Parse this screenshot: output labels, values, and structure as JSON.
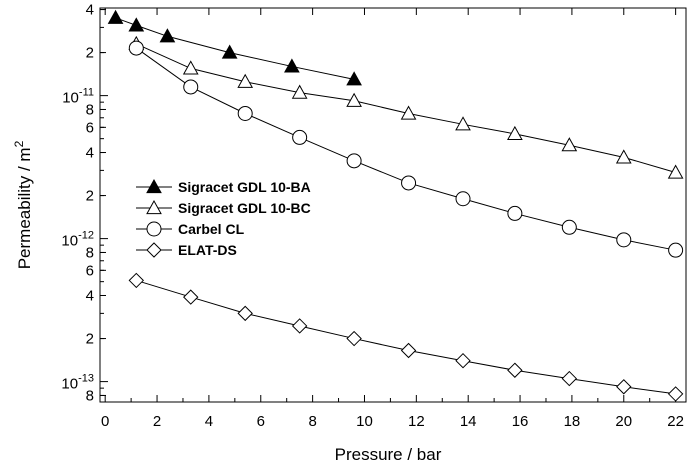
{
  "chart_data": {
    "type": "scatter",
    "xlabel": "Pressure / bar",
    "ylabel": "Permeability / m",
    "ylabel_superscript": "2",
    "xlim": [
      -0.2,
      22.4
    ],
    "ylim": [
      7.2e-14,
      4.1e-11
    ],
    "yscale": "log",
    "grid": false,
    "legend_position": "center-left",
    "x_ticks": [
      0,
      2,
      4,
      6,
      8,
      10,
      12,
      14,
      16,
      18,
      20,
      22
    ],
    "y_major_ticks": [
      {
        "value": 1e-11,
        "base": "10",
        "exponent": "-11"
      },
      {
        "value": 1e-12,
        "base": "10",
        "exponent": "-12"
      },
      {
        "value": 1e-13,
        "base": "10",
        "exponent": "-13"
      }
    ],
    "y_minor_ticks": [
      {
        "value": 4e-11,
        "label": "4"
      },
      {
        "value": 2e-11,
        "label": "2"
      },
      {
        "value": 8e-12,
        "label": "8"
      },
      {
        "value": 6e-12,
        "label": "6"
      },
      {
        "value": 4e-12,
        "label": "4"
      },
      {
        "value": 2e-12,
        "label": "2"
      },
      {
        "value": 8e-13,
        "label": "8"
      },
      {
        "value": 6e-13,
        "label": "6"
      },
      {
        "value": 4e-13,
        "label": "4"
      },
      {
        "value": 2e-13,
        "label": "2"
      },
      {
        "value": 8e-14,
        "label": "8"
      }
    ],
    "series": [
      {
        "name": "Sigracet GDL 10-BA",
        "marker": "triangle-filled",
        "x": [
          0.4,
          1.2,
          2.4,
          4.8,
          7.2,
          9.6
        ],
        "y": [
          3.5e-11,
          3.1e-11,
          2.6e-11,
          2e-11,
          1.6e-11,
          1.3e-11
        ]
      },
      {
        "name": "Sigracet GDL 10-BC",
        "marker": "triangle-open",
        "x": [
          1.2,
          3.3,
          5.4,
          7.5,
          9.6,
          11.7,
          13.8,
          15.8,
          17.9,
          20.0,
          22.0
        ],
        "y": [
          2.3e-11,
          1.55e-11,
          1.25e-11,
          1.05e-11,
          9.2e-12,
          7.5e-12,
          6.3e-12,
          5.4e-12,
          4.5e-12,
          3.7e-12,
          2.9e-12
        ]
      },
      {
        "name": "Carbel CL",
        "marker": "circle-open",
        "x": [
          1.2,
          3.3,
          5.4,
          7.5,
          9.6,
          11.7,
          13.8,
          15.8,
          17.9,
          20.0,
          22.0
        ],
        "y": [
          2.15e-11,
          1.15e-11,
          7.5e-12,
          5.1e-12,
          3.5e-12,
          2.45e-12,
          1.9e-12,
          1.5e-12,
          1.2e-12,
          9.8e-13,
          8.3e-13
        ]
      },
      {
        "name": "ELAT-DS",
        "marker": "diamond-open",
        "x": [
          1.2,
          3.3,
          5.4,
          7.5,
          9.6,
          11.7,
          13.8,
          15.8,
          17.9,
          20.0,
          22.0
        ],
        "y": [
          5.1e-13,
          3.9e-13,
          3e-13,
          2.45e-13,
          2e-13,
          1.65e-13,
          1.4e-13,
          1.2e-13,
          1.05e-13,
          9.2e-14,
          8.2e-14
        ]
      }
    ]
  }
}
